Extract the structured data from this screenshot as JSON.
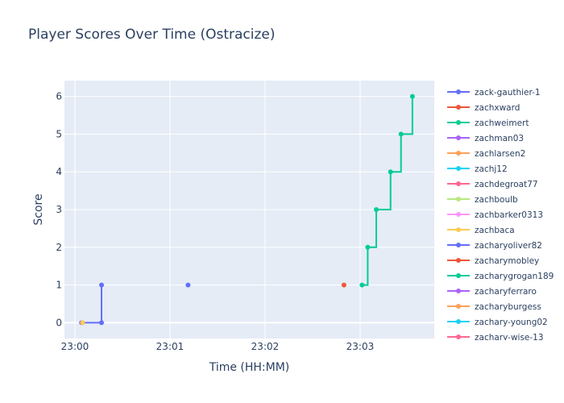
{
  "chart_data": {
    "type": "line",
    "line_shape": "step",
    "title": "Player Scores Over Time (Ostracize)",
    "xlabel": "Time (HH:MM)",
    "ylabel": "Score",
    "x_ticks": [
      "23:00",
      "23:01",
      "23:02",
      "23:03"
    ],
    "x_tick_minutes": [
      0,
      1,
      2,
      3
    ],
    "xlim_minutes": [
      -0.11,
      3.78
    ],
    "ylim": [
      -0.42,
      6.42
    ],
    "y_ticks": [
      0,
      1,
      2,
      3,
      4,
      5,
      6
    ],
    "grid": true,
    "legend_position": "right",
    "plot_background": "#e5ecf6",
    "series": [
      {
        "name": "zack-gauthier-1",
        "color": "#636efa",
        "x_minutes": [
          0.07,
          0.28,
          0.28
        ],
        "values": [
          0,
          0,
          1
        ]
      },
      {
        "name": "zachxward",
        "color": "#EF553B",
        "x_minutes": [
          2.83
        ],
        "values": [
          1
        ]
      },
      {
        "name": "zachweimert",
        "color": "#00cc96",
        "x_minutes": [
          3.02,
          3.08,
          3.17,
          3.32,
          3.43,
          3.55
        ],
        "values": [
          1,
          2,
          3,
          4,
          5,
          6
        ]
      },
      {
        "name": "zachman03",
        "color": "#ab63fa",
        "x_minutes": [],
        "values": []
      },
      {
        "name": "zachlarsen2",
        "color": "#FFA15A",
        "x_minutes": [
          0.08
        ],
        "values": [
          0
        ]
      },
      {
        "name": "zachj12",
        "color": "#19d3f3",
        "x_minutes": [],
        "values": []
      },
      {
        "name": "zachdegroat77",
        "color": "#FF6692",
        "x_minutes": [],
        "values": []
      },
      {
        "name": "zachboulb",
        "color": "#B6E880",
        "x_minutes": [],
        "values": []
      },
      {
        "name": "zachbarker0313",
        "color": "#FF97FF",
        "x_minutes": [],
        "values": []
      },
      {
        "name": "zachbaca",
        "color": "#FECB52",
        "x_minutes": [
          0.08
        ],
        "values": [
          0
        ]
      },
      {
        "name": "zacharyoliver82",
        "color": "#636efa",
        "x_minutes": [
          1.19
        ],
        "values": [
          1
        ]
      },
      {
        "name": "zacharymobley",
        "color": "#EF553B",
        "x_minutes": [],
        "values": []
      },
      {
        "name": "zacharygrogan189",
        "color": "#00cc96",
        "x_minutes": [],
        "values": []
      },
      {
        "name": "zacharyferraro",
        "color": "#ab63fa",
        "x_minutes": [],
        "values": []
      },
      {
        "name": "zacharyburgess",
        "color": "#FFA15A",
        "x_minutes": [],
        "values": []
      },
      {
        "name": "zachary-young02",
        "color": "#19d3f3",
        "x_minutes": [],
        "values": []
      },
      {
        "name": "zachary-wise-13",
        "color": "#FF6692",
        "x_minutes": [],
        "values": []
      }
    ]
  }
}
